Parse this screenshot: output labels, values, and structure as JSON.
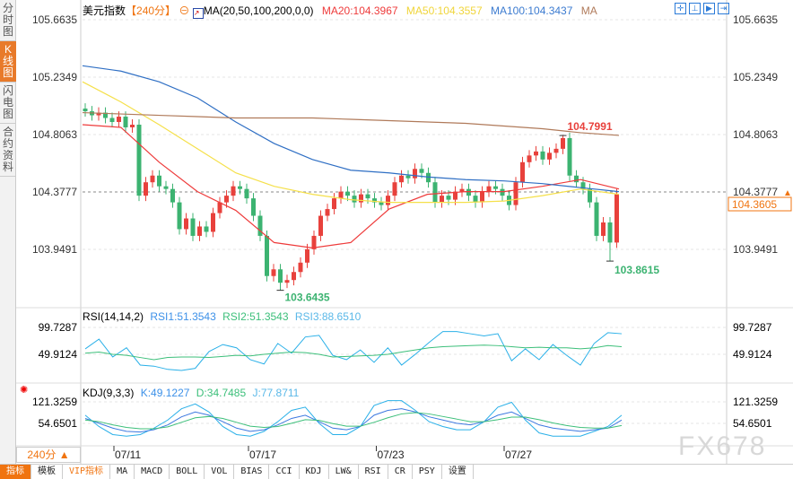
{
  "sidebar": {
    "tabs": [
      "分时图",
      "K线图",
      "闪电图",
      "合约资料"
    ],
    "active": 1
  },
  "header": {
    "symbol": "美元指数",
    "period": "【240分】",
    "ma_label": "MA(20,50,100,200,0,0)",
    "ma20": "MA20:104.3967",
    "ma50": "MA50:104.3557",
    "ma100": "MA100:104.3437",
    "ma200": "MA"
  },
  "colors": {
    "up": "#e8413c",
    "down": "#3cb371",
    "ma20": "#ee3b3b",
    "ma50": "#f5e04a",
    "ma100": "#2f6fc4",
    "ma200": "#b07a5a",
    "rsi1": "#2ab0e8",
    "rsi2": "#3cbf7a",
    "accent": "#f07410"
  },
  "rsi_header": {
    "title": "RSI(14,14,2)",
    "rsi1": "RSI1:51.3543",
    "rsi2": "RSI2:51.3543",
    "rsi3": "RSI3:88.6510"
  },
  "kdj_header": {
    "title": "KDJ(9,3,3)",
    "k": "K:49.1227",
    "d": "D:34.7485",
    "j": "J:77.8711"
  },
  "period_button": "240分 ▲",
  "watermark": "FX678",
  "toolbar": [
    "指标",
    "模板",
    "VIP指标",
    "MA",
    "MACD",
    "BOLL",
    "VOL",
    "BIAS",
    "CCI",
    "KDJ",
    "LW&",
    "RSI",
    "CR",
    "PSY",
    "设置"
  ],
  "chart_data": {
    "type": "candlestick",
    "ylim": [
      103.9491,
      105.6635
    ],
    "yticks": [
      "105.6635",
      "105.2349",
      "104.8063",
      "104.3777",
      "103.9491"
    ],
    "current_price": "104.3605",
    "ref_line": "104.3777",
    "xticks": [
      {
        "label": "07/11",
        "i": 4
      },
      {
        "label": "07/17",
        "i": 24
      },
      {
        "label": "07/23",
        "i": 43
      },
      {
        "label": "07/27",
        "i": 62
      }
    ],
    "high_label": {
      "text": "104.7991",
      "i": 71,
      "value": 104.7991
    },
    "low_label": {
      "text": "103.6435",
      "i": 29,
      "value": 103.6435
    },
    "low2_label": {
      "text": "103.8615",
      "i": 78,
      "value": 103.8615
    },
    "closes": [
      104.98,
      104.95,
      104.97,
      104.93,
      104.9,
      104.94,
      104.86,
      104.88,
      104.35,
      104.45,
      104.5,
      104.42,
      104.4,
      104.3,
      104.1,
      104.18,
      104.05,
      104.12,
      104.08,
      104.22,
      104.3,
      104.35,
      104.42,
      104.4,
      104.33,
      104.2,
      104.05,
      103.75,
      103.8,
      103.7,
      103.72,
      103.78,
      103.85,
      103.95,
      104.05,
      104.2,
      104.25,
      104.33,
      104.38,
      104.35,
      104.3,
      104.36,
      104.33,
      104.3,
      104.28,
      104.35,
      104.45,
      104.5,
      104.48,
      104.55,
      104.52,
      104.45,
      104.3,
      104.35,
      104.32,
      104.38,
      104.4,
      104.35,
      104.3,
      104.38,
      104.42,
      104.4,
      104.35,
      104.28,
      104.45,
      104.6,
      104.65,
      104.68,
      104.62,
      104.67,
      104.7,
      104.78,
      104.5,
      104.45,
      104.4,
      104.3,
      104.05,
      104.15,
      104.0,
      104.36
    ],
    "ma": {
      "ma20": [
        104.88,
        104.86,
        104.6,
        104.38,
        104.24,
        104.0,
        103.96,
        104.0,
        104.25,
        104.36,
        104.38,
        104.38,
        104.42,
        104.47,
        104.4
      ],
      "ma50": [
        105.2,
        105.05,
        104.88,
        104.7,
        104.52,
        104.42,
        104.36,
        104.32,
        104.3,
        104.3,
        104.3,
        104.31,
        104.35,
        104.4,
        104.36
      ],
      "ma100": [
        105.32,
        105.28,
        105.2,
        105.08,
        104.9,
        104.74,
        104.62,
        104.54,
        104.52,
        104.49,
        104.47,
        104.46,
        104.44,
        104.41,
        104.38
      ],
      "ma200": [
        104.97,
        104.96,
        104.95,
        104.94,
        104.93,
        104.93,
        104.93,
        104.92,
        104.91,
        104.9,
        104.89,
        104.87,
        104.85,
        104.82,
        104.8
      ]
    },
    "rsi": {
      "ylim": [
        49.9124,
        99.7287
      ],
      "yticks": [
        "99.7287",
        "49.9124"
      ],
      "rsi1": [
        60,
        78,
        45,
        62,
        30,
        28,
        22,
        20,
        24,
        55,
        68,
        62,
        40,
        32,
        70,
        52,
        82,
        85,
        48,
        40,
        58,
        35,
        62,
        30,
        50,
        72,
        92,
        92,
        88,
        84,
        88,
        38,
        60,
        40,
        68,
        48,
        30,
        70,
        90,
        88
      ],
      "rsi2": [
        52,
        54,
        50,
        48,
        44,
        40,
        44,
        45,
        45,
        44,
        46,
        48,
        47,
        50,
        52,
        54,
        53,
        50,
        45,
        46,
        47,
        48,
        50,
        54,
        58,
        62,
        64,
        65,
        66,
        67,
        66,
        64,
        62,
        63,
        62,
        62,
        60,
        62,
        66,
        64
      ]
    },
    "kdj": {
      "ylim": [
        54.6501,
        121.3259
      ],
      "yticks": [
        "121.3259",
        "54.6501"
      ],
      "k": [
        70,
        55,
        40,
        30,
        28,
        35,
        50,
        75,
        90,
        80,
        60,
        40,
        30,
        35,
        50,
        70,
        80,
        60,
        40,
        35,
        45,
        80,
        95,
        100,
        90,
        75,
        65,
        55,
        50,
        60,
        80,
        90,
        70,
        50,
        40,
        35,
        30,
        35,
        40,
        65
      ],
      "d": [
        65,
        60,
        50,
        42,
        38,
        38,
        44,
        58,
        72,
        76,
        70,
        58,
        46,
        42,
        45,
        55,
        66,
        64,
        54,
        46,
        46,
        58,
        72,
        84,
        88,
        84,
        76,
        68,
        60,
        60,
        66,
        74,
        74,
        66,
        56,
        48,
        42,
        40,
        40,
        48
      ],
      "j": [
        80,
        45,
        20,
        15,
        20,
        40,
        65,
        100,
        115,
        90,
        45,
        20,
        15,
        30,
        60,
        95,
        105,
        55,
        20,
        20,
        45,
        110,
        125,
        125,
        95,
        60,
        45,
        35,
        35,
        60,
        105,
        120,
        65,
        25,
        15,
        15,
        15,
        30,
        45,
        80
      ]
    }
  }
}
